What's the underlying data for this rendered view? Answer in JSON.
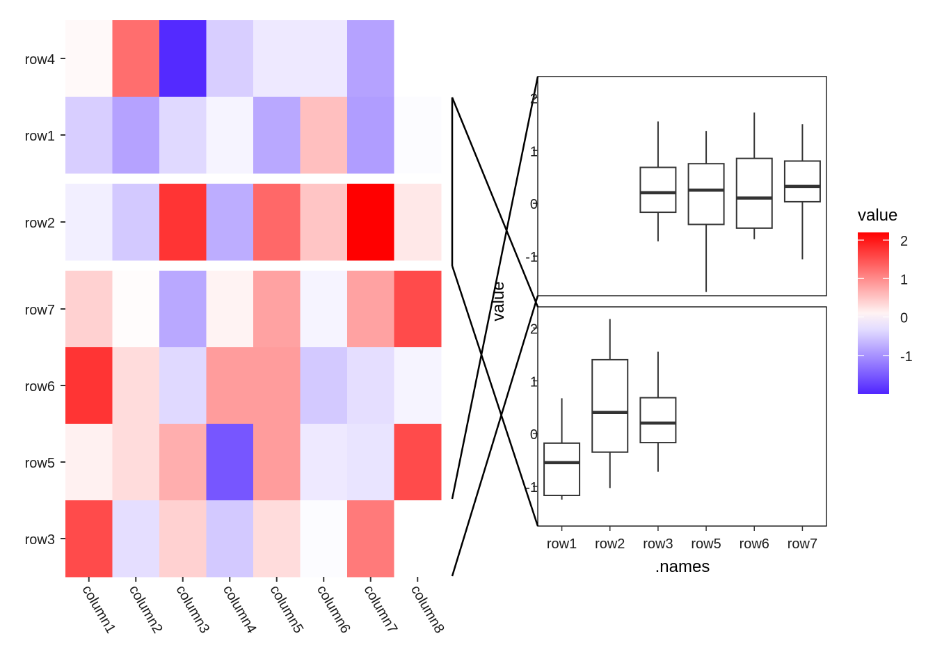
{
  "chart_data": [
    {
      "type": "heatmap",
      "rows": [
        "row4",
        "row1",
        "row2",
        "row7",
        "row6",
        "row5",
        "row3"
      ],
      "row_groups": [
        [
          "row4",
          "row1"
        ],
        [
          "row2"
        ],
        [
          "row7",
          "row6",
          "row5",
          "row3"
        ]
      ],
      "columns": [
        "column1",
        "column2",
        "column3",
        "column4",
        "column5",
        "column6",
        "column7",
        "column8"
      ],
      "values": [
        [
          0.05,
          1.25,
          -1.95,
          -0.45,
          -0.2,
          -0.2,
          -0.85,
          0.0
        ],
        [
          -0.45,
          -0.85,
          -0.35,
          -0.1,
          -0.8,
          0.55,
          -0.9,
          -0.03
        ],
        [
          -0.15,
          -0.5,
          1.75,
          -0.75,
          1.3,
          0.5,
          2.2,
          0.2
        ],
        [
          0.4,
          0.03,
          -0.8,
          0.1,
          0.8,
          -0.1,
          0.8,
          1.55
        ],
        [
          1.75,
          0.3,
          -0.35,
          0.85,
          0.85,
          -0.5,
          -0.3,
          -0.1
        ],
        [
          0.12,
          0.3,
          0.7,
          -1.55,
          0.85,
          -0.2,
          -0.25,
          1.55
        ],
        [
          1.55,
          -0.3,
          0.4,
          -0.5,
          0.3,
          -0.03,
          1.15,
          0.0
        ]
      ],
      "colorscale": {
        "low": "#5025ff",
        "mid": "#ffffff",
        "high": "#ff0000"
      }
    },
    {
      "type": "box",
      "xlabel": ".names",
      "ylabel": "value",
      "categories": [
        "row1",
        "row2",
        "row3",
        "row5",
        "row6",
        "row7"
      ],
      "ylim": [
        -1.75,
        2.4
      ],
      "yticks": [
        2,
        1,
        0,
        -1
      ],
      "panels": [
        {
          "boxes": [
            {
              "category": "row3",
              "min": -0.72,
              "q1": -0.17,
              "median": 0.2,
              "q3": 0.68,
              "max": 1.55
            },
            {
              "category": "row5",
              "min": -1.68,
              "q1": -0.4,
              "median": 0.25,
              "q3": 0.75,
              "max": 1.37
            },
            {
              "category": "row6",
              "min": -0.68,
              "q1": -0.47,
              "median": 0.1,
              "q3": 0.85,
              "max": 1.72
            },
            {
              "category": "row7",
              "min": -1.06,
              "q1": 0.03,
              "median": 0.32,
              "q3": 0.8,
              "max": 1.5
            }
          ]
        },
        {
          "boxes": [
            {
              "category": "row1",
              "min": -1.25,
              "q1": -1.17,
              "median": -0.55,
              "q3": -0.18,
              "max": 0.67
            },
            {
              "category": "row2",
              "min": -1.03,
              "q1": -0.35,
              "median": 0.4,
              "q3": 1.4,
              "max": 2.17
            },
            {
              "category": "row3",
              "min": -0.72,
              "q1": -0.17,
              "median": 0.2,
              "q3": 0.68,
              "max": 1.55
            }
          ]
        }
      ]
    }
  ],
  "legend": {
    "title": "value",
    "ticks": [
      "2",
      "1",
      "0",
      "-1"
    ],
    "tick_values": [
      2,
      1,
      0,
      -1
    ],
    "range": [
      -2.0,
      2.2
    ]
  }
}
